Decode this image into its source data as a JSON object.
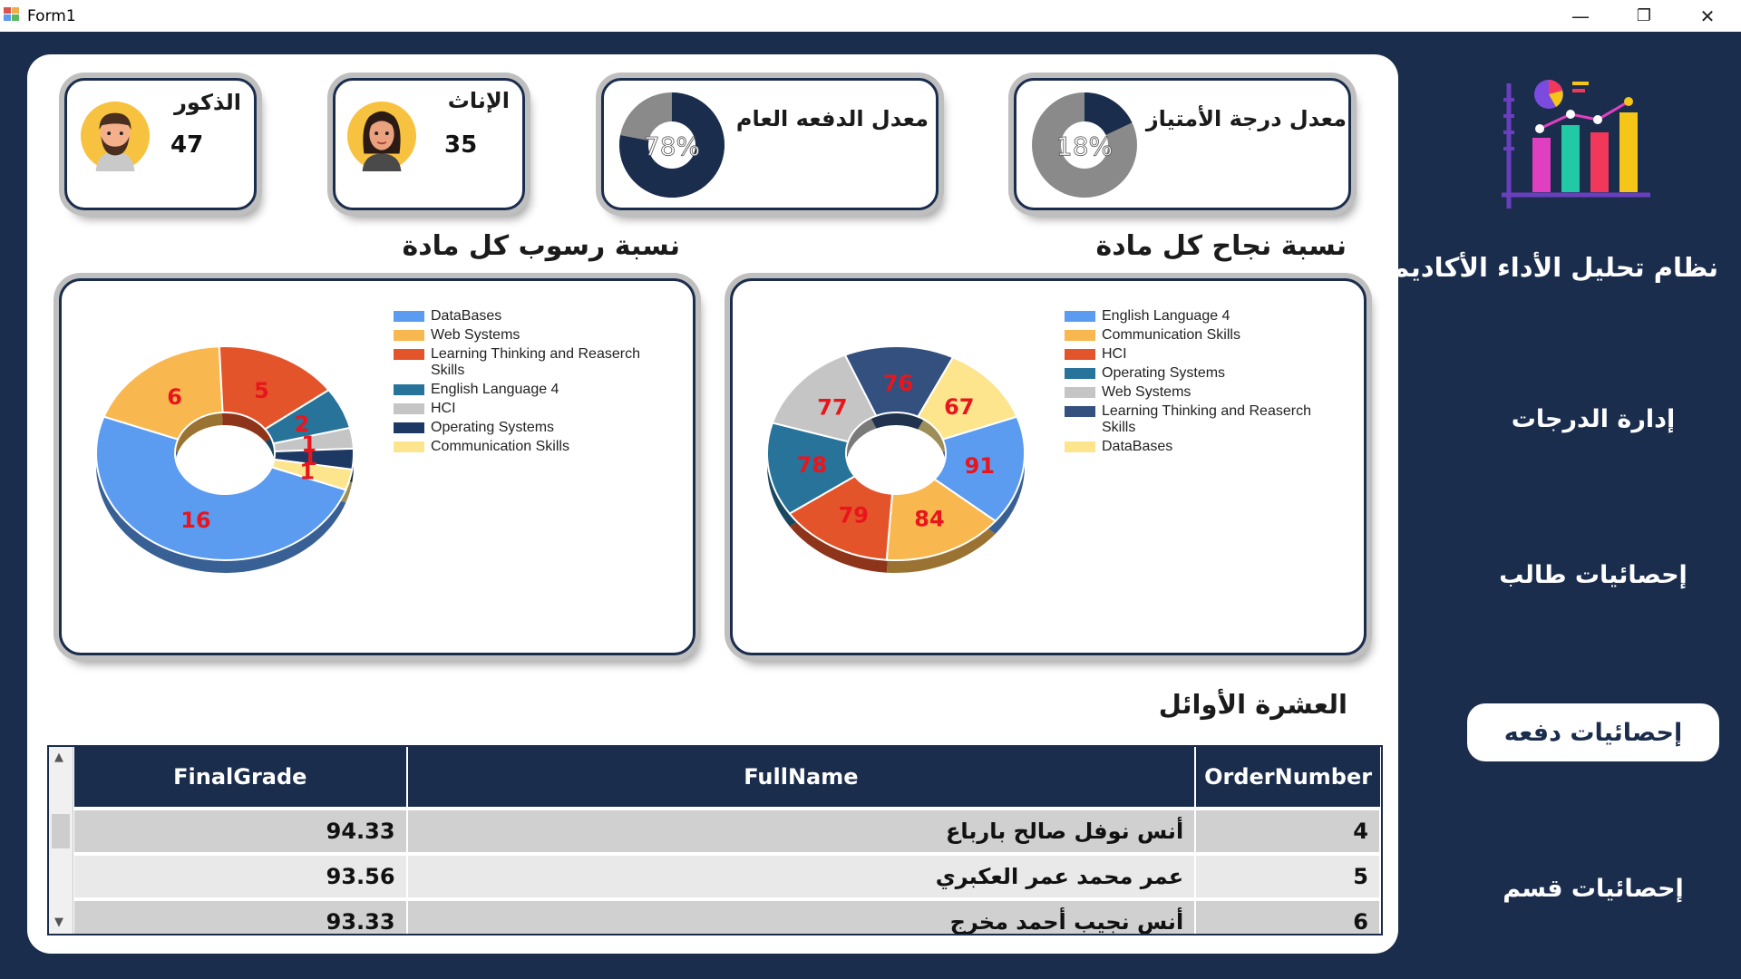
{
  "window": {
    "title": "Form1",
    "minimize_glyph": "—",
    "maximize_glyph": "❐",
    "close_glyph": "✕"
  },
  "sidebar": {
    "title": "نظام تحليل الأداء الأكاديمي",
    "items": [
      {
        "label": "إدارة الدرجات",
        "active": false
      },
      {
        "label": "إحصائيات طالب",
        "active": false
      },
      {
        "label": "إحصائيات دفعه",
        "active": true
      },
      {
        "label": "إحصائيات قسم",
        "active": false
      }
    ]
  },
  "stats": {
    "males": {
      "label": "الذكور",
      "value": "47"
    },
    "females": {
      "label": "الإناث",
      "value": "35"
    },
    "batch_average": {
      "label": "معدل الدفعه العام",
      "percent_text": "78%",
      "percent": 78
    },
    "excellence": {
      "label": "معدل درجة الأمتياز",
      "percent_text": "18%",
      "percent": 18
    }
  },
  "colors": {
    "navy": "#1b2d4d",
    "donut_grey": "#8a8a8a",
    "label_red": "#e8161c"
  },
  "chart_data": [
    {
      "type": "pie",
      "title": "نسبة نجاح كل مادة",
      "categories": [
        "English Language 4",
        "Communication Skills",
        "HCI",
        "Operating Systems",
        "Web Systems",
        "Learning Thinking and Reaserch Skills",
        "DataBases"
      ],
      "values": [
        91,
        84,
        79,
        78,
        77,
        76,
        67
      ],
      "colors": [
        "#5b9bf0",
        "#f9b84f",
        "#e4542a",
        "#27739a",
        "#c5c5c5",
        "#33507e",
        "#fde58e"
      ],
      "legend_position": "right"
    },
    {
      "type": "pie",
      "title": "نسبة رسوب كل مادة",
      "categories": [
        "DataBases",
        "Web Systems",
        "Learning Thinking and Reaserch Skills",
        "English Language 4",
        "HCI",
        "Operating Systems",
        "Communication Skills"
      ],
      "values": [
        16,
        6,
        5,
        2,
        1,
        1,
        1
      ],
      "colors": [
        "#5b9bf0",
        "#f9b84f",
        "#e4542a",
        "#27739a",
        "#c5c5c5",
        "#1d3963",
        "#fde58e"
      ],
      "legend_position": "right"
    }
  ],
  "top_ten": {
    "title": "العشرة الأوائل",
    "columns": [
      "FinalGrade",
      "FullName",
      "OrderNumber"
    ],
    "rows": [
      {
        "grade": "94.33",
        "name": "أنس نوفل صالح بارباع",
        "order": "4"
      },
      {
        "grade": "93.56",
        "name": "عمر محمد عمر العكبري",
        "order": "5"
      },
      {
        "grade": "93.33",
        "name": "أنس نجيب أحمد مخرج",
        "order": "6"
      }
    ]
  }
}
